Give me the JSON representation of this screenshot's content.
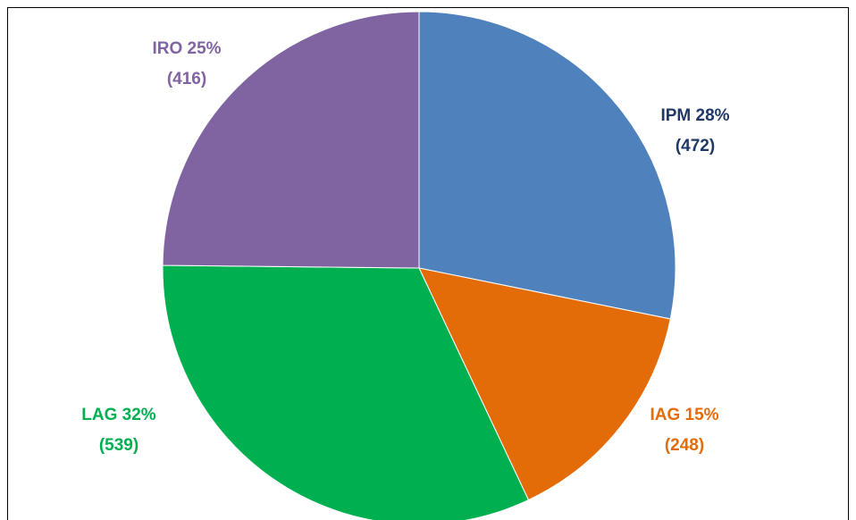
{
  "chart_data": {
    "type": "pie",
    "categories": [
      "IPM 28%",
      "IAG 15%",
      "LAG 32%",
      "IRO 25%"
    ],
    "values": [
      472,
      248,
      539,
      416
    ],
    "value_labels": [
      "(472)",
      "(248)",
      "(539)",
      "(416)"
    ],
    "colors": [
      "#4f81bd",
      "#e36c09",
      "#00b050",
      "#8064a2"
    ],
    "label_colors": [
      "#1f3864",
      "#e36c09",
      "#00b050",
      "#8064a2"
    ]
  }
}
